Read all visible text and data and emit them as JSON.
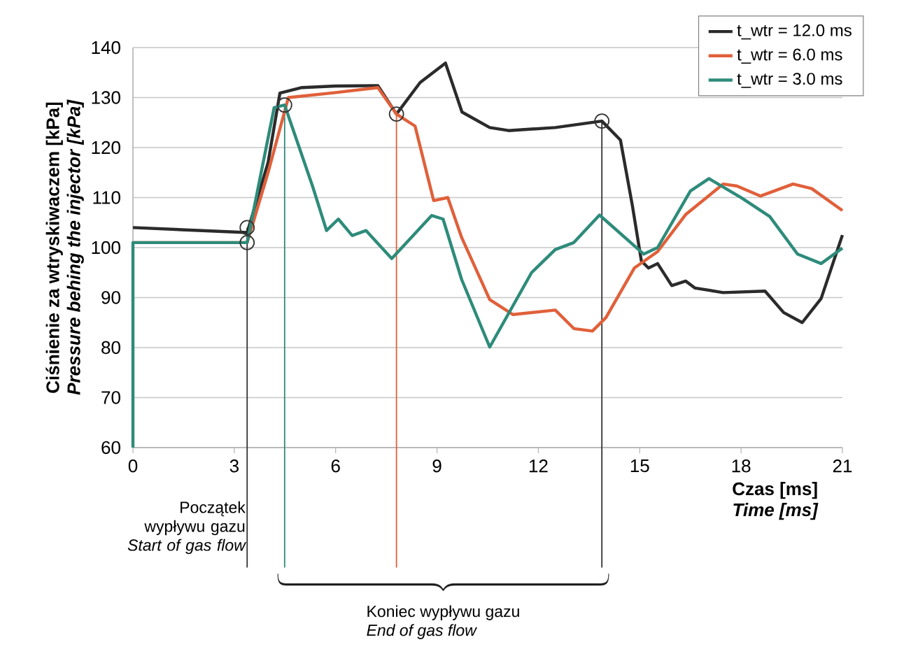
{
  "chart_data": {
    "type": "line",
    "xlabel": "Czas [ms]",
    "ylabel": "Ciśnienie za wtryskiwaczem [kPa]",
    "annotations": [
      "Pressure behing the injector [kPa]",
      "Time [ms]",
      "Początek wypływu gazu",
      "Start of gas flow",
      "Koniec wypływu gazu",
      "End of gas flow"
    ],
    "xlim": [
      0,
      21
    ],
    "ylim": [
      60,
      140
    ],
    "xticks": [
      0,
      3,
      6,
      9,
      12,
      15,
      18,
      21
    ],
    "yticks": [
      60,
      70,
      80,
      90,
      100,
      110,
      120,
      130,
      140
    ],
    "grid": "y",
    "legend": "top right",
    "line_style": "solid",
    "marker": "none",
    "series": [
      {
        "name": "t_wtr = 12.0 ms",
        "color": "#2b2b2b",
        "x": [
          0,
          3.38,
          4.0,
          4.35,
          5.0,
          6.0,
          7.25,
          7.8,
          8.5,
          9.25,
          9.74,
          10.56,
          11.12,
          12.5,
          13.88,
          14.43,
          14.78,
          15.05,
          15.26,
          15.53,
          15.95,
          16.36,
          16.64,
          17.47,
          18.71,
          19.26,
          19.81,
          20.37,
          21
        ],
        "values": [
          104,
          103,
          117,
          130.9,
          132,
          132.3,
          132.4,
          126.7,
          133,
          136.9,
          127.1,
          124,
          123.4,
          124,
          125.3,
          121.5,
          108.5,
          97.3,
          95.9,
          96.8,
          92.4,
          93.3,
          91.9,
          91,
          91.3,
          87,
          85,
          89.8,
          102.5
        ]
      },
      {
        "name": "t_wtr = 6.0 ms",
        "color": "#e0603a",
        "x": [
          0,
          3.38,
          4.0,
          4.6,
          6.0,
          7.25,
          7.8,
          8.35,
          8.9,
          9.32,
          9.73,
          10.56,
          11.25,
          12.5,
          13.05,
          13.6,
          14.0,
          14.84,
          15.53,
          16.36,
          17.47,
          17.88,
          18.57,
          19.54,
          20.09,
          21
        ],
        "values": [
          101,
          101,
          115,
          130,
          131,
          132,
          126.7,
          124.3,
          109.4,
          110,
          102,
          89.6,
          86.6,
          87.5,
          83.8,
          83.3,
          86,
          95.9,
          99.2,
          106.6,
          112.7,
          112.3,
          110.3,
          112.7,
          111.8,
          107.4
        ]
      },
      {
        "name": "t_wtr = 3.0 ms",
        "color": "#2e8b7a",
        "x": [
          0,
          0,
          3.38,
          4.18,
          4.49,
          5.32,
          5.73,
          6.08,
          6.49,
          6.9,
          7.66,
          8.84,
          9.18,
          9.73,
          10.56,
          11.8,
          12.5,
          13.05,
          13.81,
          15.12,
          15.53,
          16.5,
          17.05,
          18.02,
          18.85,
          19.67,
          20.37,
          21
        ],
        "values": [
          60,
          101,
          101,
          128,
          128.5,
          112.2,
          103.4,
          105.7,
          102.4,
          103.4,
          97.8,
          106.4,
          105.7,
          93.6,
          80.1,
          95,
          99.6,
          101,
          106.5,
          98.7,
          100,
          111.3,
          113.8,
          109.9,
          106.2,
          98.7,
          96.8,
          99.9
        ]
      },
      {
        "type": "scatter",
        "marker": "circle",
        "color": "#333333",
        "x": [
          3.38,
          3.38,
          4.49,
          7.8,
          13.88
        ],
        "values": [
          104,
          101,
          128.5,
          126.7,
          125.3
        ]
      }
    ],
    "ref_lines": [
      {
        "axis": "x",
        "value": 3.38,
        "color": "#333333"
      },
      {
        "axis": "x",
        "value": 4.49,
        "color": "#2e8b7a"
      },
      {
        "axis": "x",
        "value": 7.8,
        "color": "#e0603a"
      },
      {
        "axis": "x",
        "value": 13.88,
        "color": "#333333"
      }
    ]
  }
}
